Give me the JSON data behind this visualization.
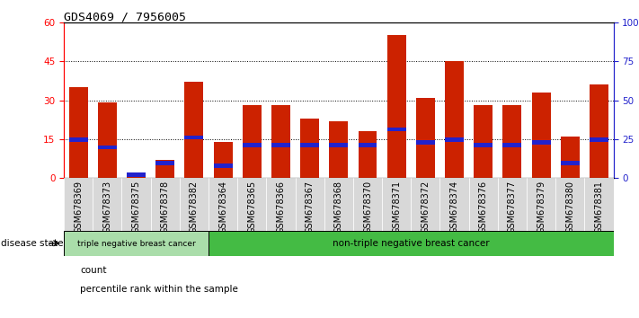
{
  "title": "GDS4069 / 7956005",
  "samples": [
    "GSM678369",
    "GSM678373",
    "GSM678375",
    "GSM678378",
    "GSM678382",
    "GSM678364",
    "GSM678365",
    "GSM678366",
    "GSM678367",
    "GSM678368",
    "GSM678370",
    "GSM678371",
    "GSM678372",
    "GSM678374",
    "GSM678376",
    "GSM678377",
    "GSM678379",
    "GSM678380",
    "GSM678381"
  ],
  "counts": [
    35,
    29,
    2,
    7,
    37,
    14,
    28,
    28,
    23,
    22,
    18,
    55,
    31,
    45,
    28,
    28,
    33,
    16,
    36
  ],
  "percentile_pos": [
    14,
    11,
    0.5,
    5,
    15,
    4,
    12,
    12,
    12,
    12,
    12,
    18,
    13,
    14,
    12,
    12,
    13,
    5,
    14
  ],
  "percentile_height": [
    1.5,
    1.5,
    1.5,
    1.5,
    1.5,
    1.5,
    1.5,
    1.5,
    1.5,
    1.5,
    1.5,
    1.5,
    1.5,
    1.5,
    1.5,
    1.5,
    1.5,
    1.5,
    1.5
  ],
  "group1_count": 5,
  "group1_label": "triple negative breast cancer",
  "group2_label": "non-triple negative breast cancer",
  "group1_color": "#aaddaa",
  "group2_color": "#44bb44",
  "bar_color": "#CC2200",
  "percentile_color": "#2222CC",
  "ylim_left": [
    0,
    60
  ],
  "ylim_right": [
    0,
    100
  ],
  "yticks_left": [
    0,
    15,
    30,
    45,
    60
  ],
  "yticks_right": [
    0,
    25,
    50,
    75,
    100
  ],
  "yticklabels_right": [
    "0",
    "25",
    "50",
    "75",
    "100%"
  ],
  "grid_lines": [
    15,
    30,
    45
  ],
  "legend_count_label": "count",
  "legend_pct_label": "percentile rank within the sample"
}
